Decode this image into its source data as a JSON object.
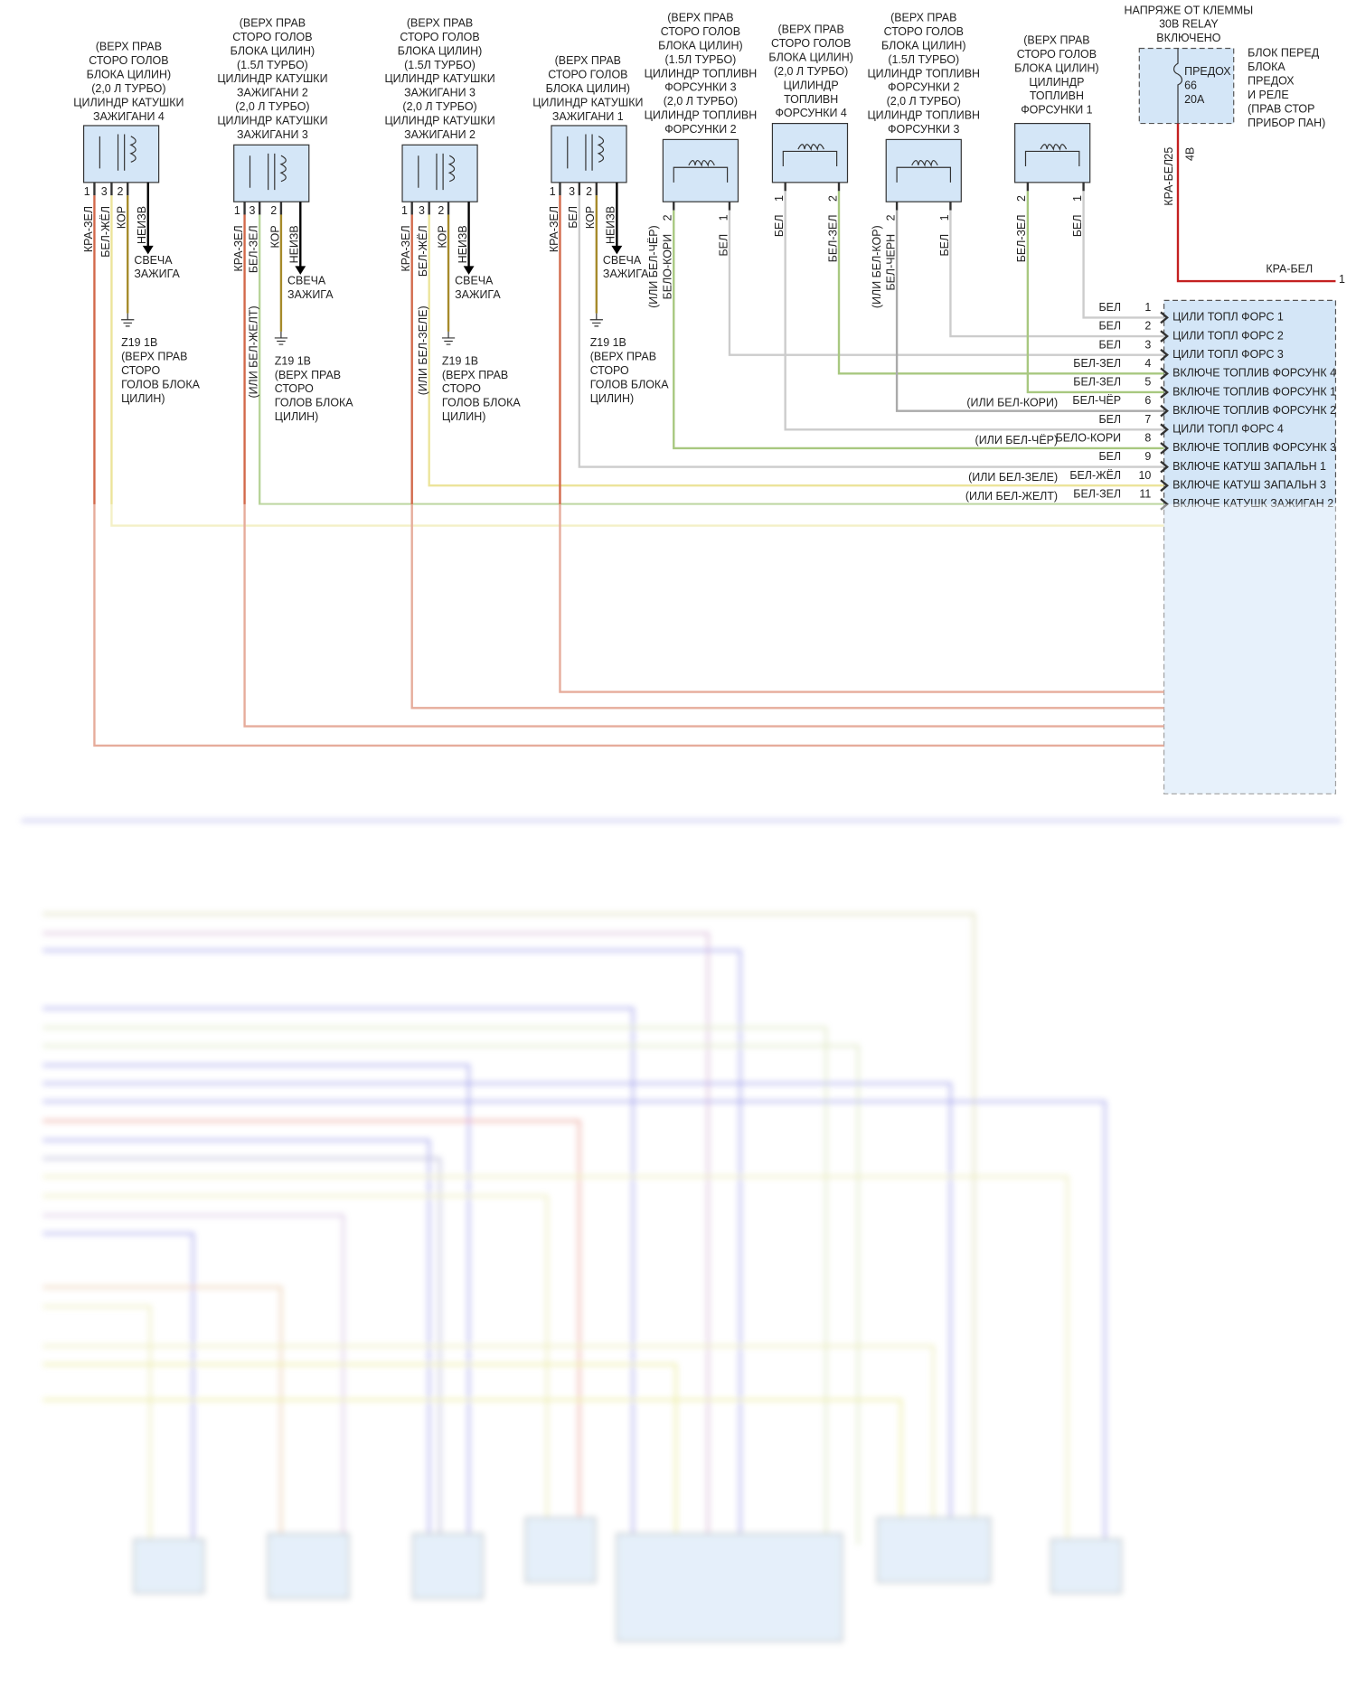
{
  "coils": [
    {
      "label": [
        "(ВЕРХ ПРАВ",
        "СТОРО ГОЛОВ",
        "БЛОКА ЦИЛИН)",
        "(2,0 Л ТУРБО)",
        "ЦИЛИНДР КАТУШКИ",
        "ЗАЖИГАНИ 4"
      ],
      "pins": [
        "1",
        "3",
        "2"
      ],
      "wires": [
        "КРА-ЗЕЛ",
        "БЕЛ-ЖЁЛ",
        "КОР",
        "НЕИЗВ"
      ],
      "spark": [
        "СВЕЧА",
        "ЗАЖИГА"
      ],
      "ground": [
        "Z19 1В",
        "(ВЕРХ ПРАВ",
        "СТОРО",
        "ГОЛОВ БЛОКА",
        "ЦИЛИН)"
      ]
    },
    {
      "label": [
        "(ВЕРХ ПРАВ",
        "СТОРО ГОЛОВ",
        "БЛОКА ЦИЛИН)",
        "(1.5Л ТУРБО)",
        "ЦИЛИНДР КАТУШКИ",
        "ЗАЖИГАНИ 2",
        "(2,0 Л ТУРБО)",
        "ЦИЛИНДР КАТУШКИ",
        "ЗАЖИГАНИ 3"
      ],
      "pins": [
        "1",
        "3",
        "2"
      ],
      "wires": [
        "КРА-ЗЕЛ",
        "БЕЛ-ЗЕЛ",
        "КОР",
        "НЕИЗВ"
      ],
      "wire_note": "(ИЛИ БЕЛ-ЖЕЛТ)",
      "spark": [
        "СВЕЧА",
        "ЗАЖИГА"
      ],
      "ground": [
        "Z19 1В",
        "(ВЕРХ ПРАВ",
        "СТОРО",
        "ГОЛОВ БЛОКА",
        "ЦИЛИН)"
      ]
    },
    {
      "label": [
        "(ВЕРХ ПРАВ",
        "СТОРО ГОЛОВ",
        "БЛОКА ЦИЛИН)",
        "(1.5Л ТУРБО)",
        "ЦИЛИНДР КАТУШКИ",
        "ЗАЖИГАНИ 3",
        "(2,0 Л ТУРБО)",
        "ЦИЛИНДР КАТУШКИ",
        "ЗАЖИГАНИ 2"
      ],
      "pins": [
        "1",
        "3",
        "2"
      ],
      "wires": [
        "КРА-ЗЕЛ",
        "БЕЛ-ЖЁЛ",
        "КОР",
        "НЕИЗВ"
      ],
      "wire_note": "(ИЛИ БЕЛ-ЗЕЛЕ)",
      "spark": [
        "СВЕЧА",
        "ЗАЖИГА"
      ],
      "ground": [
        "Z19 1В",
        "(ВЕРХ ПРАВ",
        "СТОРО",
        "ГОЛОВ БЛОКА",
        "ЦИЛИН)"
      ]
    },
    {
      "label": [
        "(ВЕРХ ПРАВ",
        "СТОРО ГОЛОВ",
        "БЛОКА ЦИЛИН)",
        "ЦИЛИНДР КАТУШКИ",
        "ЗАЖИГАНИ 1"
      ],
      "pins": [
        "1",
        "3",
        "2"
      ],
      "wires": [
        "КРА-ЗЕЛ",
        "БЕЛ",
        "КОР",
        "НЕИЗВ"
      ],
      "spark": [
        "СВЕЧА",
        "ЗАЖИГА"
      ],
      "ground": [
        "Z19 1В",
        "(ВЕРХ ПРАВ",
        "СТОРО",
        "ГОЛОВ БЛОКА",
        "ЦИЛИН)"
      ]
    }
  ],
  "injectors": [
    {
      "label": [
        "(ВЕРХ ПРАВ",
        "СТОРО ГОЛОВ",
        "БЛОКА ЦИЛИН)",
        "(1.5Л ТУРБО)",
        "ЦИЛИНДР ТОПЛИВН",
        "ФОРСУНКИ 3",
        "(2,0 Л ТУРБО)",
        "ЦИЛИНДР ТОПЛИВН",
        "ФОРСУНКИ 2"
      ],
      "pins": [
        "2",
        "1"
      ],
      "wires": [
        "БЕЛО-КОРИ",
        "БЕЛ"
      ],
      "wire_note": "(ИЛИ БЕЛ-ЧЁР)"
    },
    {
      "label": [
        "(ВЕРХ ПРАВ",
        "СТОРО ГОЛОВ",
        "БЛОКА ЦИЛИН)",
        "(2,0 Л ТУРБО)",
        "ЦИЛИНДР",
        "ТОПЛИВН",
        "ФОРСУНКИ 4"
      ],
      "pins": [
        "1",
        "2"
      ],
      "wires": [
        "БЕЛ",
        "БЕЛ-ЗЕЛ"
      ]
    },
    {
      "label": [
        "(ВЕРХ ПРАВ",
        "СТОРО ГОЛОВ",
        "БЛОКА ЦИЛИН)",
        "(1.5Л ТУРБО)",
        "ЦИЛИНДР ТОПЛИВН",
        "ФОРСУНКИ 2",
        "(2,0 Л ТУРБО)",
        "ЦИЛИНДР ТОПЛИВН",
        "ФОРСУНКИ 3"
      ],
      "pins": [
        "2",
        "1"
      ],
      "wires": [
        "БЕЛ-ЧЕРН",
        "БЕЛ"
      ],
      "wire_note": "(ИЛИ БЕЛ-КОР)"
    },
    {
      "label": [
        "(ВЕРХ ПРАВ",
        "СТОРО ГОЛОВ",
        "БЛОКА ЦИЛИН)",
        "ЦИЛИНДР",
        "ТОПЛИВН",
        "ФОРСУНКИ 1"
      ],
      "pins": [
        "2",
        "1"
      ],
      "wires": [
        "БЕЛ-ЗЕЛ",
        "БЕЛ"
      ]
    }
  ],
  "fuse": {
    "header": [
      "НАПРЯЖЕ ОТ КЛЕММЫ",
      "30В RELAY",
      "ВКЛЮЧЕНО"
    ],
    "name": [
      "ПРЕДОХ",
      "66",
      "20А"
    ],
    "block": [
      "БЛОК ПЕРЕД",
      "БЛОКА",
      "ПРЕДОХ",
      "И РЕЛЕ",
      "(ПРАВ СТОР",
      "ПРИБОР ПАН)"
    ],
    "pins": [
      "25",
      "4В"
    ],
    "wire": "КРА-БЕЛ",
    "wire_label": "КРА-БЕЛ",
    "end_pin": "1"
  },
  "ecu": {
    "pins": [
      {
        "number": "1",
        "wire": "БЕЛ",
        "name": "ЦИЛИ ТОПЛ ФОРС 1"
      },
      {
        "number": "2",
        "wire": "БЕЛ",
        "name": "ЦИЛИ ТОПЛ ФОРС 2"
      },
      {
        "number": "3",
        "wire": "БЕЛ",
        "name": "ЦИЛИ ТОПЛ ФОРС 3"
      },
      {
        "number": "4",
        "wire": "БЕЛ-ЗЕЛ",
        "name": "ВКЛЮЧЕ ТОПЛИВ ФОРСУНК 4"
      },
      {
        "number": "5",
        "wire": "БЕЛ-ЗЕЛ",
        "name": "ВКЛЮЧЕ ТОПЛИВ ФОРСУНК 1"
      },
      {
        "number": "6",
        "wire": "БЕЛ-ЧЁР",
        "name": "ВКЛЮЧЕ ТОПЛИВ ФОРСУНК 2",
        "note": "(ИЛИ БЕЛ-КОРИ)"
      },
      {
        "number": "7",
        "wire": "БЕЛ",
        "name": "ЦИЛИ ТОПЛ ФОРС 4"
      },
      {
        "number": "8",
        "wire": "БЕЛО-КОРИ",
        "name": "ВКЛЮЧЕ ТОПЛИВ ФОРСУНК 3",
        "note": "(ИЛИ БЕЛ-ЧЁР)"
      },
      {
        "number": "9",
        "wire": "БЕЛ",
        "name": "ВКЛЮЧЕ КАТУШ ЗАПАЛЬН 1"
      },
      {
        "number": "10",
        "wire": "БЕЛ-ЖЁЛ",
        "name": "ВКЛЮЧЕ КАТУШ ЗАПАЛЬН 3",
        "note": "(ИЛИ БЕЛ-ЗЕЛЕ)"
      },
      {
        "number": "11",
        "wire": "БЕЛ-ЗЕЛ",
        "name": "ВКЛЮЧЕ КАТУШК ЗАЖИГАН 2",
        "note": "(ИЛИ БЕЛ-ЖЕЛТ)"
      }
    ]
  }
}
